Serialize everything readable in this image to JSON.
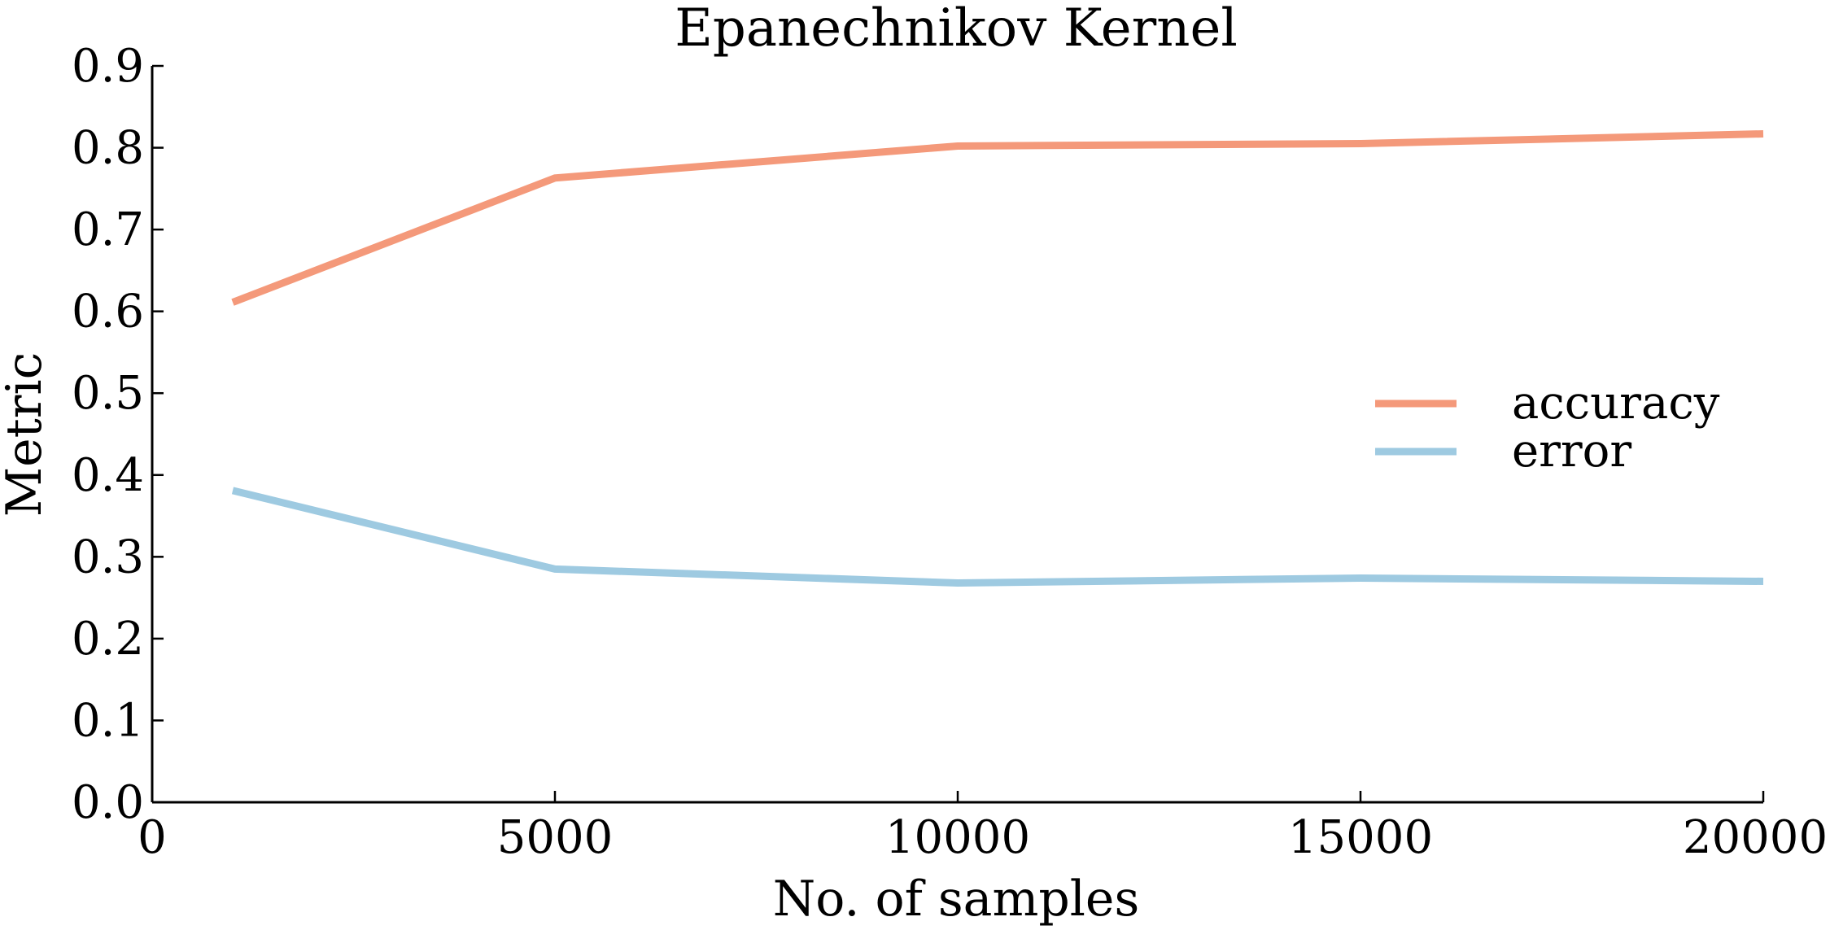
{
  "chart_data": {
    "type": "line",
    "title": "Epanechnikov Kernel",
    "xlabel": "No. of samples",
    "ylabel": "Metric",
    "xlim": [
      0,
      20000
    ],
    "ylim": [
      0.0,
      0.9
    ],
    "xticks": [
      0,
      5000,
      10000,
      15000,
      20000
    ],
    "xtick_labels": [
      "0",
      "5000",
      "10000",
      "15000",
      "20000"
    ],
    "yticks": [
      0.0,
      0.1,
      0.2,
      0.3,
      0.4,
      0.5,
      0.6,
      0.7,
      0.8,
      0.9
    ],
    "ytick_labels": [
      "0.0",
      "0.1",
      "0.2",
      "0.3",
      "0.4",
      "0.5",
      "0.6",
      "0.7",
      "0.8",
      "0.9"
    ],
    "x": [
      1000,
      5000,
      10000,
      15000,
      20000
    ],
    "series": [
      {
        "name": "accuracy",
        "color": "#f4997a",
        "values": [
          0.611,
          0.763,
          0.802,
          0.805,
          0.817
        ]
      },
      {
        "name": "error",
        "color": "#9ecae1",
        "values": [
          0.381,
          0.285,
          0.268,
          0.274,
          0.27
        ]
      }
    ],
    "legend_position": "right",
    "grid": false
  }
}
